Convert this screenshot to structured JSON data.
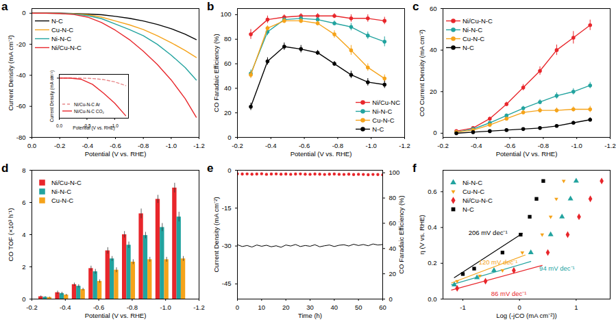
{
  "chart_data": [
    {
      "type": "line",
      "title": "a",
      "xlabel": "Potential (V vs. RHE)",
      "ylabel": "Current Density (mA cm⁻²)",
      "xlim": [
        0,
        -1.2
      ],
      "xticks": [
        {
          "value": 0,
          "label": "0.0"
        },
        -0.2,
        -0.4,
        -0.6,
        -0.8,
        {
          "value": -1,
          "label": "-1.0"
        },
        -1.2
      ],
      "ylim": [
        -80,
        3
      ],
      "yticks": [
        0,
        -20,
        -40,
        -60,
        -80
      ],
      "legend": "top-left",
      "x": [
        0,
        -0.1,
        -0.2,
        -0.3,
        -0.4,
        -0.5,
        -0.6,
        -0.7,
        -0.8,
        -0.9,
        -1.0,
        -1.1,
        -1.18
      ],
      "series": [
        {
          "name": "N-C",
          "color": "#000000",
          "line_style": "solid",
          "values": [
            0,
            0,
            0,
            -0.2,
            -0.5,
            -1.0,
            -2.0,
            -3.3,
            -5.0,
            -7.2,
            -10.0,
            -13.5,
            -17.0
          ]
        },
        {
          "name": "Cu-N-C",
          "color": "#f5a31a",
          "line_style": "solid",
          "values": [
            0,
            0,
            -0.1,
            -0.3,
            -1.0,
            -2.5,
            -5.0,
            -7.5,
            -10.5,
            -14.5,
            -19.0,
            -24.0,
            -28.5
          ]
        },
        {
          "name": "Ni-N-C",
          "color": "#22a39f",
          "line_style": "solid",
          "values": [
            0,
            0,
            -0.1,
            -0.5,
            -1.5,
            -3.5,
            -7.0,
            -10.5,
            -14.5,
            -20.0,
            -27.0,
            -35.0,
            -43.0
          ]
        },
        {
          "name": "Ni/Cu-N-C",
          "color": "#e8262b",
          "line_style": "solid",
          "values": [
            0,
            0,
            -0.2,
            -0.8,
            -2.5,
            -6.0,
            -11.0,
            -17.0,
            -24.5,
            -33.0,
            -43.0,
            -55.0,
            -67.0
          ]
        }
      ]
    },
    {
      "type": "line",
      "xlabel": "Potential (V vs. RHE)",
      "ylabel": "Current Density (mA cm⁻²)",
      "xlim": [
        0,
        -1.25
      ],
      "xticks": [
        {
          "value": 0,
          "label": "0.0"
        },
        -0.5,
        {
          "value": -1,
          "label": "-1.0"
        }
      ],
      "ylim": [
        -32,
        3
      ],
      "yticks": [
        0
      ],
      "legend": "bottom-left",
      "x": [
        0,
        -0.2,
        -0.4,
        -0.6,
        -0.8,
        -1.0,
        -1.2
      ],
      "series": [
        {
          "name": "Ni/Cu-N-C Ar",
          "color": "#e8888a",
          "line_style": "dashed",
          "values": [
            0,
            0,
            0,
            -0.3,
            -1.2,
            -3,
            -6
          ]
        },
        {
          "name": "Ni/Cu-N-C CO₂",
          "color": "#e8262b",
          "line_style": "solid",
          "values": [
            0,
            0,
            -1,
            -5,
            -12,
            -20,
            -30
          ]
        }
      ]
    },
    {
      "type": "line",
      "title": "b",
      "xlabel": "Potential (V vs. RHE)",
      "ylabel": "CO Faradaic Efficiency (%)",
      "xlim": [
        -0.2,
        -1.2
      ],
      "xticks": [
        -0.2,
        -0.4,
        -0.6,
        -0.8,
        {
          "value": -1,
          "label": "-1.0"
        },
        -1.2
      ],
      "ylim": [
        0,
        105
      ],
      "yticks": [
        0,
        20,
        40,
        60,
        80,
        100
      ],
      "legend": "bottom-right",
      "x": [
        -0.28,
        -0.38,
        -0.48,
        -0.58,
        -0.68,
        -0.78,
        -0.88,
        -0.98,
        -1.08
      ],
      "series": [
        {
          "name": "Ni/Cu-NC",
          "color": "#e8262b",
          "marker": "circle",
          "line_style": "solid",
          "values": [
            84,
            96,
            98,
            99,
            99,
            99,
            97,
            97,
            95
          ],
          "errors": [
            4,
            3,
            2,
            2,
            2,
            2,
            3,
            3,
            3
          ]
        },
        {
          "name": "Ni-N-C",
          "color": "#22a39f",
          "marker": "circle",
          "line_style": "solid",
          "values": [
            52,
            86,
            96,
            97,
            96,
            93,
            90,
            83,
            78
          ],
          "errors": [
            3,
            3,
            2,
            2,
            2,
            2,
            3,
            3,
            4
          ]
        },
        {
          "name": "Cu-N-C",
          "color": "#f5a31a",
          "marker": "circle",
          "line_style": "solid",
          "values": [
            51,
            89,
            95,
            95,
            93,
            84,
            71,
            57,
            48
          ],
          "errors": [
            3,
            2,
            2,
            2,
            2,
            3,
            4,
            3,
            3
          ]
        },
        {
          "name": "N-C",
          "color": "#000000",
          "marker": "circle",
          "line_style": "solid",
          "values": [
            25,
            62,
            74,
            72,
            69,
            60,
            51,
            45,
            43
          ],
          "errors": [
            3,
            3,
            3,
            3,
            2,
            2,
            3,
            3,
            3
          ]
        }
      ]
    },
    {
      "type": "line",
      "title": "c",
      "xlabel": "Potential (V vs. RHE)",
      "ylabel": "CO Current Density (mA cm⁻²)",
      "xlim": [
        -0.2,
        -1.2
      ],
      "xticks": [
        -0.2,
        -0.4,
        -0.6,
        -0.8,
        {
          "value": -1,
          "label": "-1.0"
        },
        -1.2
      ],
      "ylim": [
        -2,
        60
      ],
      "yticks": [
        0,
        20,
        40,
        60
      ],
      "legend": "top-left",
      "x": [
        -0.28,
        -0.38,
        -0.48,
        -0.58,
        -0.68,
        -0.78,
        -0.88,
        -0.98,
        -1.08
      ],
      "series": [
        {
          "name": "Ni/Cu-N-C",
          "color": "#e8262b",
          "marker": "circle",
          "line_style": "solid",
          "values": [
            1,
            2.5,
            7,
            14,
            22,
            30,
            40,
            46,
            52
          ],
          "errors": [
            0.3,
            0.5,
            0.8,
            1,
            1.5,
            2,
            2.5,
            3,
            2.5
          ]
        },
        {
          "name": "Ni-N-C",
          "color": "#22a39f",
          "marker": "circle",
          "line_style": "solid",
          "values": [
            0.5,
            2,
            5,
            8.5,
            12,
            15,
            18,
            20,
            23
          ],
          "errors": [
            0.2,
            0.3,
            0.5,
            0.8,
            1,
            1.2,
            1.5,
            1.5,
            1.5
          ]
        },
        {
          "name": "Cu-N-C",
          "color": "#f5a31a",
          "marker": "circle",
          "line_style": "solid",
          "values": [
            0.5,
            1.5,
            4,
            7,
            10,
            11,
            11,
            11.5,
            11.5
          ],
          "errors": [
            0.2,
            0.3,
            0.5,
            0.8,
            1,
            1.2,
            1.2,
            1.2,
            1.5
          ]
        },
        {
          "name": "N-C",
          "color": "#000000",
          "marker": "circle",
          "line_style": "solid",
          "values": [
            0,
            0.5,
            1,
            1.5,
            2,
            2.5,
            3.5,
            5,
            6.5
          ],
          "errors": [
            0.1,
            0.2,
            0.3,
            0.3,
            0.4,
            0.5,
            0.6,
            0.8,
            1.0
          ]
        }
      ]
    },
    {
      "type": "bar",
      "title": "d",
      "xlabel": "Potential (V vs. RHE)",
      "ylabel": "CO TOF (×10³ h⁻¹)",
      "xlim": [
        -0.2,
        -1.2
      ],
      "xticks": [
        -0.2,
        -0.4,
        -0.6,
        -0.8,
        {
          "value": -1,
          "label": "-1.0"
        },
        -1.2
      ],
      "ylim": [
        0,
        8
      ],
      "yticks": [
        0,
        2,
        4,
        6,
        8
      ],
      "legend": "top-left",
      "x": [
        -0.28,
        -0.38,
        -0.48,
        -0.58,
        -0.68,
        -0.78,
        -0.88,
        -0.98,
        -1.08
      ],
      "series": [
        {
          "name": "Ni/Cu-N-C",
          "color": "#e8262b",
          "values": [
            0.15,
            0.4,
            0.9,
            1.9,
            3.0,
            4.0,
            5.3,
            6.2,
            6.9
          ],
          "errors": [
            0.05,
            0.1,
            0.1,
            0.15,
            0.2,
            0.2,
            0.3,
            0.25,
            0.3
          ]
        },
        {
          "name": "Ni-N-C",
          "color": "#22a39f",
          "values": [
            0.12,
            0.35,
            0.8,
            1.7,
            2.5,
            3.35,
            3.95,
            4.45,
            5.1
          ],
          "errors": [
            0.04,
            0.08,
            0.1,
            0.15,
            0.15,
            0.2,
            0.2,
            0.25,
            0.3
          ]
        },
        {
          "name": "Cu-N-C",
          "color": "#f5a31a",
          "values": [
            0.1,
            0.25,
            0.6,
            1.1,
            1.8,
            2.3,
            2.45,
            2.45,
            2.5
          ],
          "errors": [
            0.03,
            0.05,
            0.08,
            0.1,
            0.15,
            0.15,
            0.15,
            0.15,
            0.15
          ]
        }
      ]
    },
    {
      "type": "line",
      "title": "e",
      "xlabel": "Time (h)",
      "ylabel": "Current Density (mA cm⁻²)",
      "y2label": "CO Faradaic Efficiency (%)",
      "xlim": [
        0,
        60
      ],
      "xticks": [
        0,
        10,
        20,
        30,
        40,
        50,
        60
      ],
      "ylim": [
        -51,
        0
      ],
      "yticks": [
        0,
        -15,
        -30,
        -45
      ],
      "y2lim": [
        0,
        102
      ],
      "y2ticks": [
        0,
        20,
        40,
        60,
        80,
        100
      ],
      "x": [
        0,
        2,
        4,
        6,
        8,
        10,
        12,
        14,
        16,
        18,
        20,
        22,
        24,
        26,
        28,
        30,
        32,
        34,
        36,
        38,
        40,
        42,
        44,
        46,
        48,
        50,
        52,
        54,
        56,
        58,
        60
      ],
      "series": [
        {
          "type": "line",
          "color": "#000000",
          "values": [
            -29.5,
            -30.2,
            -29.8,
            -30.4,
            -29.6,
            -30.1,
            -29.7,
            -30.3,
            -29.9,
            -30.5,
            -29.6,
            -30.0,
            -29.4,
            -30.2,
            -29.8,
            -30.1,
            -29.5,
            -30.3,
            -29.9,
            -29.6,
            -30.2,
            -29.7,
            -29.5,
            -30.0,
            -29.3,
            -29.8,
            -29.4,
            -29.9,
            -29.2,
            -29.6,
            -29.4
          ]
        },
        {
          "type": "scatter",
          "axis": "y2",
          "marker": "circle",
          "color": "#e8262b",
          "values": [
            99.2,
            99.0,
            99.1,
            98.9,
            99.0,
            99.2,
            98.8,
            99.0,
            99.1,
            98.9,
            99.0,
            98.8,
            99.0,
            99.1,
            98.9,
            98.8,
            99.0,
            98.9,
            98.7,
            98.9,
            99.0,
            98.8,
            98.7,
            98.9,
            98.6,
            98.8,
            98.7,
            98.5,
            98.7,
            98.6,
            98.4
          ]
        }
      ]
    },
    {
      "type": "scatter",
      "title": "f",
      "xlabel": "Log (-jCO (mA cm⁻²))",
      "ylabel": "η (V vs. RHE)",
      "xlim": [
        -1.35,
        1.6
      ],
      "xticks": [
        -1,
        0,
        1
      ],
      "ylim": [
        0,
        0.72
      ],
      "yticks": [
        {
          "value": 0,
          "label": "0.0"
        },
        0.2,
        0.4,
        0.6
      ],
      "legend": "top-left",
      "series": [
        {
          "name": "Ni-N-C",
          "color": "#22a39f",
          "marker": "triangle",
          "x": [
            -1.15,
            -0.75,
            -0.45,
            0.2,
            0.55,
            0.75,
            0.9,
            1.0
          ],
          "values": [
            0.08,
            0.12,
            0.16,
            0.26,
            0.36,
            0.46,
            0.56,
            0.66
          ],
          "fit": [
            [
              -1.2,
              0.08
            ],
            [
              0.2,
              0.21
            ]
          ]
        },
        {
          "name": "Cu-N-C",
          "color": "#f5a31a",
          "marker": "triangle-down",
          "x": [
            -1.1,
            -0.7,
            -0.3,
            0.05,
            0.4,
            0.55,
            0.65,
            0.78
          ],
          "values": [
            0.1,
            0.13,
            0.16,
            0.26,
            0.36,
            0.46,
            0.56,
            0.66
          ],
          "fit": [
            [
              -1.2,
              0.09
            ],
            [
              0.1,
              0.246
            ]
          ]
        },
        {
          "name": "Ni/Cu-N-C",
          "color": "#e8262b",
          "marker": "diamond",
          "x": [
            -1.1,
            -0.6,
            -0.1,
            0.5,
            0.85,
            1.05,
            1.25,
            1.45
          ],
          "values": [
            0.06,
            0.1,
            0.16,
            0.26,
            0.36,
            0.46,
            0.56,
            0.66
          ],
          "fit": [
            [
              -1.2,
              0.05
            ],
            [
              0.4,
              0.188
            ]
          ]
        },
        {
          "name": "N-C",
          "color": "#000000",
          "marker": "square",
          "x": [
            -1.0,
            -0.8,
            -0.3,
            0.02,
            0.18,
            0.3,
            0.42
          ],
          "values": [
            0.14,
            0.17,
            0.26,
            0.36,
            0.46,
            0.56,
            0.66
          ],
          "fit": [
            [
              -1.15,
              0.12
            ],
            [
              0.05,
              0.367
            ]
          ]
        }
      ],
      "annotations": [
        {
          "text": "206 mV dec⁻¹",
          "x": -0.9,
          "y": 0.37,
          "color": "#000000"
        },
        {
          "text": "120 mV dec⁻¹",
          "x": -0.72,
          "y": 0.205,
          "color": "#f5a31a"
        },
        {
          "text": "94 mV dec⁻¹",
          "x": 0.35,
          "y": 0.17,
          "color": "#22a39f"
        },
        {
          "text": "86 mV dec⁻¹",
          "x": -0.5,
          "y": 0.03,
          "color": "#e8262b"
        }
      ]
    }
  ]
}
